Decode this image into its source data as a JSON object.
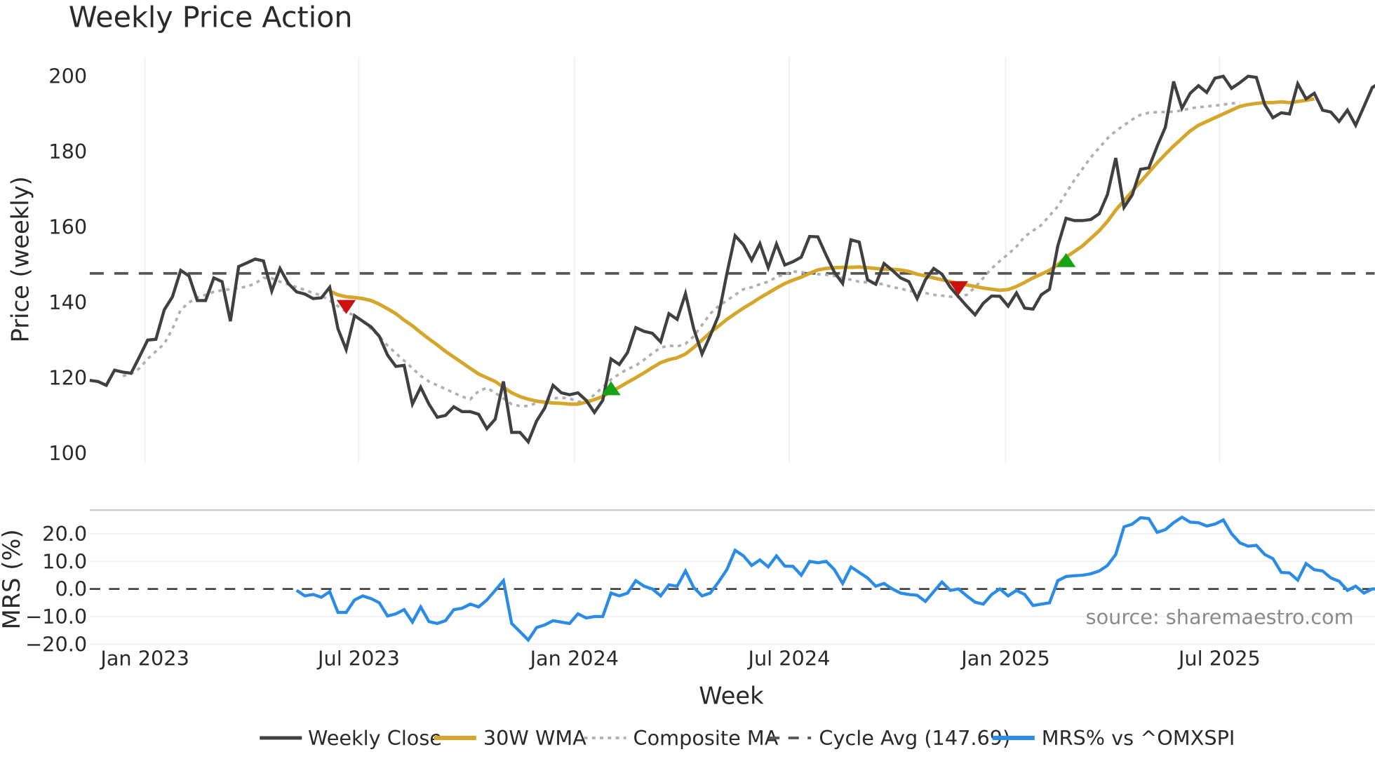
{
  "title": "Weekly Price Action",
  "price_panel": {
    "ylabel": "Price (weekly)",
    "yticks": [
      "100",
      "120",
      "140",
      "160",
      "180",
      "200"
    ],
    "ylim": [
      98,
      205
    ]
  },
  "mrs_panel": {
    "ylabel": "MRS (%)",
    "yticks": [
      "−20.0",
      "−10.0",
      "0.0",
      "10.0",
      "20.0"
    ],
    "ylim": [
      -22,
      30
    ]
  },
  "xaxis": {
    "label": "Week",
    "ticks": [
      "Jan 2023",
      "Jul 2023",
      "Jan 2024",
      "Jul 2024",
      "Jan 2025",
      "Jul 2025"
    ]
  },
  "source": "source: sharemaestro.com",
  "legend": {
    "weekly_close": "Weekly Close",
    "wma": "30W WMA",
    "composite": "Composite MA",
    "cycle": "Cycle Avg (147.69)",
    "mrs": "MRS% vs ^OMXSPI"
  },
  "colors": {
    "weekly_close": "#404040",
    "wma": "#d4a72c",
    "composite": "#b0b0b0",
    "cycle": "#555555",
    "mrs": "#2b8ce6",
    "buy": "#16a316",
    "sell": "#cc1111",
    "grid": "#eef0f5"
  },
  "chart_data": {
    "type": "line",
    "title": "Weekly Price Action",
    "xlabel": "Week",
    "ylabel": "Price (weekly)",
    "x_start_week": "2022-11-25",
    "x_ticks": [
      "Jan 2023",
      "Jul 2023",
      "Jan 2024",
      "Jul 2024",
      "Jan 2025",
      "Jul 2025"
    ],
    "ylim": [
      100,
      200
    ],
    "cycle_avg": 147.69,
    "series": [
      {
        "name": "Weekly Close",
        "values": [
          119.3,
          119,
          118,
          122,
          121.5,
          121.2,
          125.5,
          130,
          130.2,
          138,
          141.5,
          148.5,
          147,
          140.5,
          140.5,
          146.5,
          145.5,
          135,
          149.5,
          150.5,
          151.5,
          151,
          143,
          149,
          145,
          142.8,
          142.2,
          141,
          141.2,
          144,
          133,
          127.5,
          136.5,
          135,
          133.5,
          131,
          126,
          123,
          123.3,
          113,
          117.5,
          113,
          109.5,
          110,
          112.3,
          111,
          111,
          110.3,
          106.5,
          109,
          119,
          105.5,
          105.5,
          103,
          108.5,
          112,
          118,
          116,
          115.5,
          116,
          114,
          110.8,
          114,
          125,
          123.5,
          126.7,
          133.3,
          132.3,
          131.8,
          129.5,
          137,
          135.5,
          142.3,
          133,
          126.3,
          131.2,
          136.5,
          147.6,
          157.7,
          155.3,
          151.2,
          155.6,
          149.2,
          155.5,
          149.9,
          150.8,
          152,
          157.5,
          157.4,
          152.5,
          148,
          145,
          156.6,
          156,
          146,
          144.8,
          150.3,
          148.5,
          146.5,
          145.5,
          141,
          146,
          149,
          147.5,
          144,
          141.5,
          139,
          136.7,
          139.8,
          141.7,
          141.6,
          139,
          142.5,
          138.5,
          138.2,
          142,
          143.5,
          155,
          162.3,
          161.7,
          161.7,
          162,
          163.5,
          168.6,
          178.3,
          165.2,
          168.5,
          175.3,
          175.7,
          181.4,
          186.5,
          198.6,
          191.5,
          195.5,
          197.5,
          195.7,
          199.5,
          200,
          196.8,
          198.3,
          200,
          199.7,
          192.5,
          189,
          190.3,
          190,
          198,
          194,
          195.5,
          191,
          190.5,
          188,
          191,
          187,
          192,
          197,
          198.3,
          191.5
        ]
      },
      {
        "name": "30W WMA",
        "values_start_index": 29,
        "values": [
          143,
          142,
          141.5,
          141.3,
          141,
          140.5,
          139.5,
          138.3,
          137,
          135.3,
          133.8,
          132,
          130.3,
          128.7,
          127,
          125.5,
          124,
          122.5,
          121,
          120,
          119,
          117.5,
          116,
          115,
          114.3,
          113.8,
          113.5,
          113.3,
          113.2,
          113,
          113,
          113.5,
          114.2,
          115,
          116.3,
          117.5,
          118.8,
          120,
          121.3,
          122.7,
          124,
          124.8,
          125.3,
          126.3,
          128,
          130,
          132,
          133.7,
          135.5,
          137,
          138.5,
          139.8,
          141.2,
          142.5,
          143.8,
          145,
          145.9,
          146.7,
          147.7,
          148.6,
          149,
          149.2,
          149.3,
          149.3,
          149.4,
          149.2,
          149,
          148.8,
          148.8,
          148.6,
          148.2,
          147.5,
          147,
          146.5,
          146,
          145.5,
          145,
          144.6,
          144.2,
          143.8,
          143.5,
          143.2,
          143.4,
          144.2,
          145.3,
          146.5,
          147.5,
          148.5,
          150,
          152,
          153.5,
          155,
          157,
          159,
          161.5,
          164.5,
          167,
          169.5,
          172,
          174.5,
          177,
          179.3,
          181.5,
          183.5,
          185.5,
          187,
          188,
          189,
          190,
          191,
          192,
          192.5,
          192.8,
          193,
          193,
          193.2,
          193,
          193.3,
          193.6,
          194
        ]
      },
      {
        "name": "Composite MA",
        "values_start_index": 4,
        "values": [
          120.5,
          121,
          122.5,
          125,
          127,
          129,
          133,
          138,
          140,
          141.3,
          142,
          142.8,
          143.2,
          143.5,
          143.8,
          144.2,
          145,
          146.5,
          146.4,
          145.5,
          144.8,
          144,
          143.3,
          142.5,
          141.8,
          140.5,
          139,
          137.5,
          136.5,
          135,
          133,
          131,
          128.5,
          126.5,
          124.5,
          122.5,
          120.5,
          119,
          118,
          117,
          116,
          115,
          114.3,
          116.5,
          117.3,
          116,
          114.5,
          113,
          112.5,
          112.5,
          113.3,
          114,
          114.5,
          114.7,
          114.5,
          113.6,
          113.8,
          115.5,
          117.5,
          119.5,
          121,
          122.3,
          123.2,
          124.8,
          126.5,
          128,
          128.5,
          128.3,
          129,
          131,
          134,
          137,
          139,
          140.5,
          142,
          143.5,
          144,
          144.8,
          145.5,
          146.7,
          147.5,
          148.2,
          148,
          147.7,
          147.5,
          147.3,
          147,
          146.5,
          146,
          145.5,
          145.3,
          145,
          144.8,
          144,
          143.7,
          143,
          142.8,
          142.5,
          142,
          141.8,
          141.5,
          141.5,
          142,
          144,
          146.5,
          149,
          151,
          152.8,
          154.8,
          157.5,
          159,
          160.5,
          163,
          165.5,
          169,
          172.5,
          175.5,
          178.5,
          181,
          183.5,
          185.5,
          187,
          188.5,
          189.8,
          190.3,
          190.5,
          190.5,
          190.6,
          190.9,
          191.5,
          191.8,
          192,
          192.2,
          192.5,
          192.8,
          193
        ]
      },
      {
        "name": "Cycle Avg",
        "constant": 147.69
      },
      {
        "name": "MRS% vs ^OMXSPI",
        "panel": "MRS (%)",
        "values_start_index": 25,
        "values": [
          -0.5,
          -2.5,
          -2,
          -3,
          -1,
          -8.5,
          -8.5,
          -4,
          -2.5,
          -3.5,
          -5,
          -9.8,
          -9,
          -7.5,
          -12,
          -6.5,
          -11.8,
          -12.5,
          -11.5,
          -7.5,
          -7,
          -5.5,
          -6.5,
          -4,
          -0.5,
          3,
          -12.5,
          -15.5,
          -18.5,
          -14,
          -13,
          -11.5,
          -12,
          -12.5,
          -9,
          -10.5,
          -10,
          -10,
          -1.5,
          -2.5,
          -1.5,
          3,
          1,
          0,
          -2.5,
          1.5,
          1,
          6.5,
          0.5,
          -2.5,
          -1.5,
          2.5,
          7,
          14,
          12,
          8.5,
          10.5,
          8,
          12,
          8.3,
          8.2,
          5,
          10,
          9.5,
          10,
          7,
          2,
          8,
          6,
          4,
          1,
          2,
          0,
          -1.5,
          -2,
          -2.3,
          -4.5,
          -1,
          2.5,
          -0.5,
          0,
          -2.5,
          -4.8,
          -5.5,
          -2,
          0,
          -2.5,
          -0.5,
          -2,
          -6,
          -5.5,
          -5,
          3,
          4.5,
          4.8,
          5,
          5.5,
          6.5,
          8.5,
          12.5,
          22.5,
          23.5,
          25.8,
          25.5,
          20.5,
          21.5,
          24,
          26,
          24.2,
          24,
          22.8,
          23.5,
          25,
          20,
          16.7,
          15.5,
          15.8,
          12.5,
          11,
          6,
          5.8,
          3.2,
          9.2,
          7,
          6.5,
          4,
          2.8,
          -0.5,
          1,
          -1.5,
          0,
          0,
          3.5,
          -1.5
        ]
      }
    ],
    "markers": [
      {
        "type": "sell",
        "week_index": 31,
        "price": 139
      },
      {
        "type": "buy",
        "week_index": 63,
        "price": 117
      },
      {
        "type": "sell",
        "week_index": 105,
        "price": 144
      },
      {
        "type": "buy",
        "week_index": 118,
        "price": 151
      }
    ],
    "mrs_ylim": [
      -20,
      20
    ],
    "mrs_yticks": [
      -20,
      -10,
      0,
      10,
      20
    ],
    "legend_position": "bottom"
  }
}
